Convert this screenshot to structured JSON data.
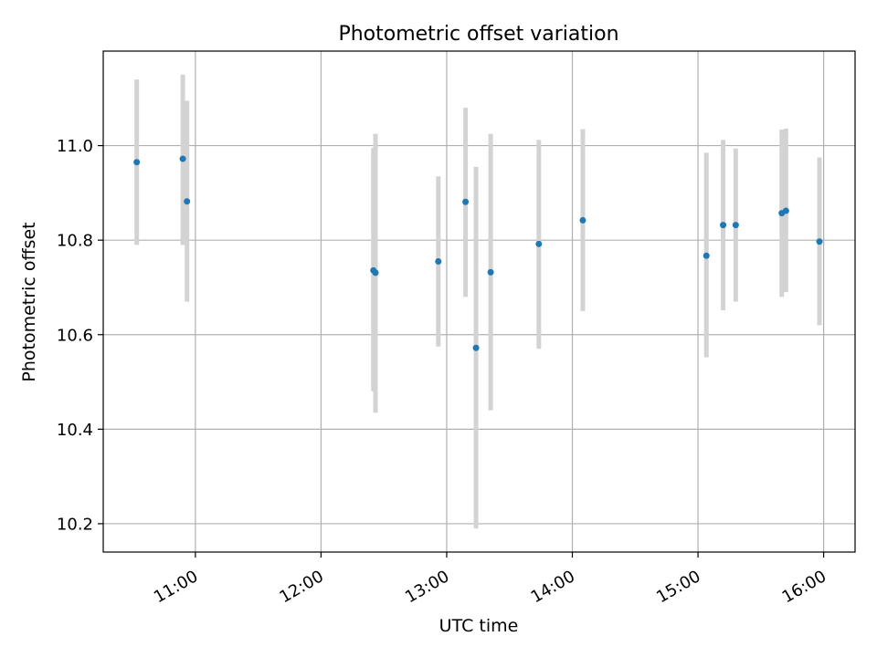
{
  "chart_data": {
    "type": "scatter",
    "title": "Photometric offset variation",
    "xlabel": "UTC time",
    "ylabel": "Photometric offset",
    "x_unit": "hours (UTC)",
    "xlim": [
      "10:16",
      "16:15"
    ],
    "ylim": [
      10.14,
      11.2
    ],
    "x_ticks": [
      {
        "value": "11:00",
        "label": "11:00"
      },
      {
        "value": "12:00",
        "label": "12:00"
      },
      {
        "value": "13:00",
        "label": "13:00"
      },
      {
        "value": "14:00",
        "label": "14:00"
      },
      {
        "value": "15:00",
        "label": "15:00"
      },
      {
        "value": "16:00",
        "label": "16:00"
      }
    ],
    "y_ticks": [
      {
        "value": 10.2,
        "label": "10.2"
      },
      {
        "value": 10.4,
        "label": "10.4"
      },
      {
        "value": 10.6,
        "label": "10.6"
      },
      {
        "value": 10.8,
        "label": "10.8"
      },
      {
        "value": 11.0,
        "label": "11.0"
      }
    ],
    "grid": true,
    "colors": {
      "point": "#1f77b4",
      "errorbar": "#d3d3d3",
      "grid": "#b0b0b0",
      "axes": "#000000"
    },
    "points": [
      {
        "x": "10:32",
        "y": 10.965,
        "y_low": 10.79,
        "y_high": 11.14
      },
      {
        "x": "10:54",
        "y": 10.972,
        "y_low": 10.79,
        "y_high": 11.15
      },
      {
        "x": "10:56",
        "y": 10.882,
        "y_low": 10.67,
        "y_high": 11.095
      },
      {
        "x": "12:25",
        "y": 10.736,
        "y_low": 10.48,
        "y_high": 10.995
      },
      {
        "x": "12:26",
        "y": 10.731,
        "y_low": 10.435,
        "y_high": 11.025
      },
      {
        "x": "12:56",
        "y": 10.755,
        "y_low": 10.575,
        "y_high": 10.935
      },
      {
        "x": "13:09",
        "y": 10.881,
        "y_low": 10.68,
        "y_high": 11.08
      },
      {
        "x": "13:14",
        "y": 10.572,
        "y_low": 10.19,
        "y_high": 10.955
      },
      {
        "x": "13:21",
        "y": 10.732,
        "y_low": 10.44,
        "y_high": 11.025
      },
      {
        "x": "13:44",
        "y": 10.792,
        "y_low": 10.57,
        "y_high": 11.012
      },
      {
        "x": "14:05",
        "y": 10.842,
        "y_low": 10.65,
        "y_high": 11.035
      },
      {
        "x": "15:04",
        "y": 10.767,
        "y_low": 10.552,
        "y_high": 10.985
      },
      {
        "x": "15:12",
        "y": 10.832,
        "y_low": 10.652,
        "y_high": 11.012
      },
      {
        "x": "15:18",
        "y": 10.832,
        "y_low": 10.67,
        "y_high": 10.994
      },
      {
        "x": "15:40",
        "y": 10.857,
        "y_low": 10.68,
        "y_high": 11.034
      },
      {
        "x": "15:42",
        "y": 10.862,
        "y_low": 10.69,
        "y_high": 11.036
      },
      {
        "x": "15:58",
        "y": 10.797,
        "y_low": 10.62,
        "y_high": 10.975
      }
    ]
  }
}
